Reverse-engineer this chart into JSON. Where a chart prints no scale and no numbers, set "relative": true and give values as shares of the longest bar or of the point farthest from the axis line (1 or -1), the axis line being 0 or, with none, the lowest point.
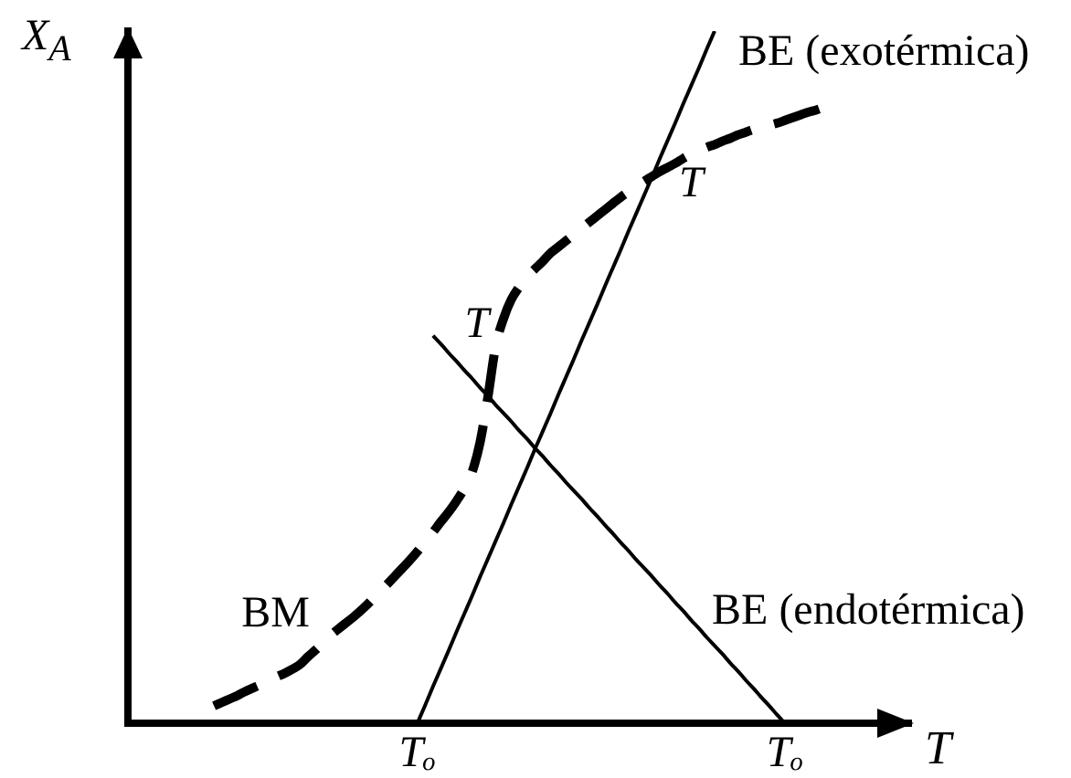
{
  "chart_data": {
    "type": "line",
    "xlabel": "T",
    "ylabel": "X$_{A}$",
    "relative": true,
    "marker": "none",
    "legend": false,
    "categories": [
      null,
      null,
      null,
      null,
      null,
      null,
      null,
      null,
      null,
      null,
      null,
      null,
      null,
      null,
      null,
      null,
      null,
      null,
      null,
      null,
      null,
      null,
      null,
      null,
      null,
      null,
      null,
      null,
      null,
      null,
      null,
      null,
      null,
      null,
      null,
      null,
      null,
      "Tₒ",
      null,
      null,
      null,
      null,
      null,
      null,
      null,
      null,
      null,
      null,
      null,
      null,
      null,
      null,
      null,
      null,
      null,
      null,
      null,
      null,
      null,
      null,
      null,
      null,
      null,
      null,
      null,
      null,
      null,
      null,
      null,
      null,
      null,
      null,
      null,
      null,
      null,
      null,
      null,
      null,
      null,
      null,
      null,
      null,
      null,
      null,
      "Tₒ",
      null,
      null,
      null,
      null,
      null,
      null,
      null,
      null,
      null,
      null,
      null,
      null,
      null,
      null,
      null,
      null
    ],
    "series": [
      {
        "name": "BM",
        "color": "#000000",
        "line_style": "dashed",
        "values": [
          null,
          null,
          null,
          null,
          null,
          null,
          null,
          null,
          null,
          null,
          null,
          0.025,
          0.03,
          0.035,
          0.04,
          0.046,
          0.051,
          0.056,
          0.061,
          0.067,
          0.072,
          0.078,
          0.085,
          0.096,
          0.106,
          0.117,
          0.128,
          0.137,
          0.146,
          0.155,
          0.165,
          0.176,
          0.188,
          0.199,
          0.211,
          0.223,
          0.235,
          0.248,
          0.262,
          0.276,
          0.291,
          0.305,
          0.321,
          0.339,
          0.363,
          0.405,
          0.47,
          0.544,
          0.584,
          0.612,
          0.63,
          0.645,
          0.656,
          0.667,
          0.679,
          0.688,
          0.697,
          0.706,
          0.715,
          0.724,
          0.733,
          0.742,
          0.751,
          0.76,
          0.768,
          0.776,
          0.783,
          0.79,
          0.797,
          0.803,
          0.809,
          0.816,
          0.822,
          0.827,
          0.832,
          0.836,
          0.841,
          0.845,
          0.85,
          0.854,
          0.858,
          0.861,
          0.864,
          0.867,
          0.871,
          0.875,
          0.879,
          0.883,
          0.886,
          0.89,
          null,
          null,
          null,
          null,
          null,
          null,
          null,
          null,
          null,
          null,
          null
        ]
      },
      {
        "name": "BE (exotérmica)",
        "color": "#000000",
        "line_style": "solid",
        "values": [
          null,
          null,
          null,
          null,
          null,
          null,
          null,
          null,
          null,
          null,
          null,
          null,
          null,
          null,
          null,
          null,
          null,
          null,
          null,
          null,
          null,
          null,
          null,
          null,
          null,
          null,
          null,
          null,
          null,
          null,
          null,
          null,
          null,
          null,
          null,
          null,
          null,
          0,
          0.026,
          0.053,
          0.079,
          0.105,
          0.132,
          0.158,
          0.184,
          0.211,
          0.237,
          0.263,
          0.289,
          0.316,
          0.342,
          0.368,
          0.395,
          0.421,
          0.447,
          0.474,
          0.5,
          0.526,
          0.553,
          0.579,
          0.605,
          0.632,
          0.658,
          0.684,
          0.711,
          0.737,
          0.763,
          0.789,
          0.816,
          0.842,
          0.868,
          0.895,
          0.921,
          0.947,
          0.974,
          1,
          null,
          null,
          null,
          null,
          null,
          null,
          null,
          null,
          null,
          null,
          null,
          null,
          null,
          null,
          null,
          null,
          null,
          null,
          null,
          null,
          null,
          null,
          null,
          null,
          null
        ]
      },
      {
        "name": "BE (endotérmica)",
        "color": "#000000",
        "line_style": "solid",
        "values": [
          null,
          null,
          null,
          null,
          null,
          null,
          null,
          null,
          null,
          null,
          null,
          null,
          null,
          null,
          null,
          null,
          null,
          null,
          null,
          null,
          null,
          null,
          null,
          null,
          null,
          null,
          null,
          null,
          null,
          null,
          null,
          null,
          null,
          null,
          null,
          null,
          null,
          null,
          null,
          0.56,
          0.548,
          0.535,
          0.523,
          0.51,
          0.498,
          0.485,
          0.473,
          0.46,
          0.448,
          0.436,
          0.423,
          0.411,
          0.398,
          0.386,
          0.373,
          0.361,
          0.348,
          0.336,
          0.324,
          0.311,
          0.299,
          0.286,
          0.274,
          0.261,
          0.249,
          0.236,
          0.224,
          0.212,
          0.199,
          0.187,
          0.174,
          0.162,
          0.149,
          0.137,
          0.124,
          0.112,
          0.1,
          0.087,
          0.075,
          0.062,
          0.05,
          0.037,
          0.025,
          0.012,
          0,
          null,
          null,
          null,
          null,
          null,
          null,
          null,
          null,
          null,
          null,
          null,
          null,
          null,
          null,
          null,
          null
        ]
      }
    ],
    "annotations": [
      "T",
      "T"
    ]
  }
}
